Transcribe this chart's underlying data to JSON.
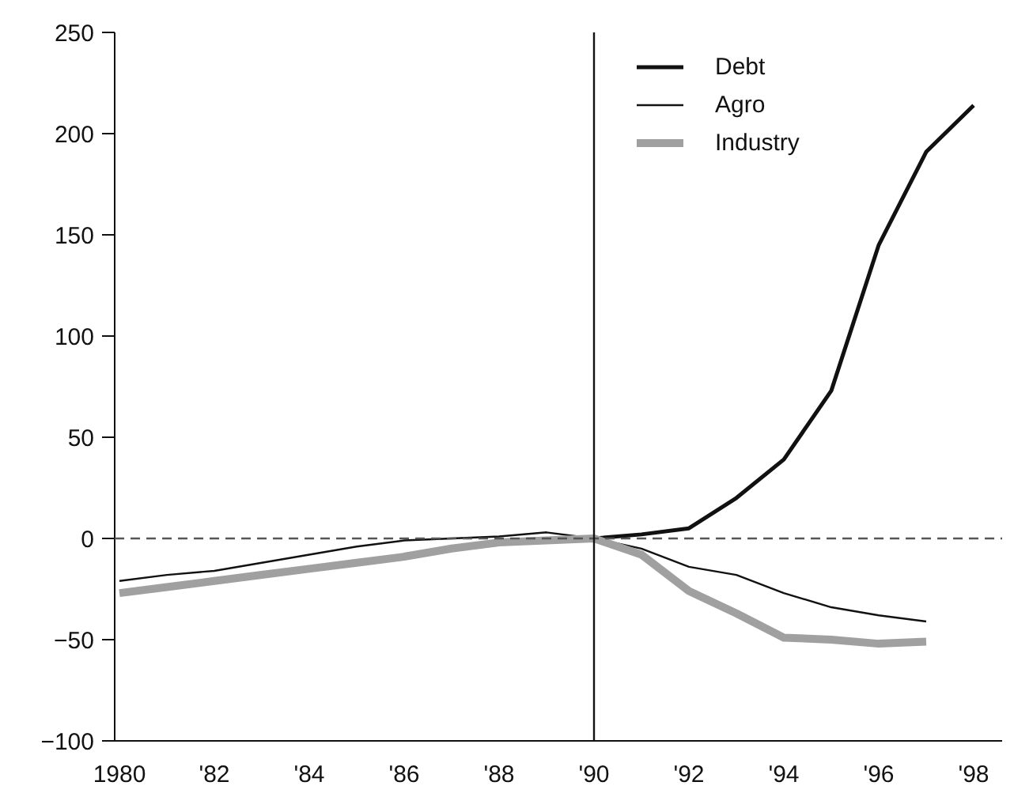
{
  "chart_data": {
    "type": "line",
    "x": [
      1980,
      1981,
      1982,
      1983,
      1984,
      1985,
      1986,
      1987,
      1988,
      1989,
      1990,
      1991,
      1992,
      1993,
      1994,
      1995,
      1996,
      1997,
      1998
    ],
    "series": [
      {
        "name": "Debt",
        "color": "#111111",
        "values": [
          null,
          null,
          null,
          null,
          null,
          null,
          null,
          null,
          null,
          null,
          0,
          2,
          5,
          20,
          39,
          73,
          145,
          191,
          214
        ]
      },
      {
        "name": "Agro",
        "color": "#111111",
        "values": [
          -21,
          -18,
          -16,
          -12,
          -8,
          -4,
          -1,
          0,
          1,
          3,
          0,
          -5,
          -14,
          -18,
          -27,
          -34,
          -38,
          -41,
          null
        ]
      },
      {
        "name": "Industry",
        "color": "#a0a0a0",
        "values": [
          -27,
          -24,
          -21,
          -18,
          -15,
          -12,
          -9,
          -5,
          -2,
          -1,
          0,
          -8,
          -26,
          -37,
          -49,
          -50,
          -52,
          -51,
          null
        ]
      }
    ],
    "xlim": [
      1979.9,
      1998.6
    ],
    "ylim": [
      -100,
      250
    ],
    "xticks": [
      {
        "value": 1980,
        "label": "1980"
      },
      {
        "value": 1982,
        "label": "'82"
      },
      {
        "value": 1984,
        "label": "'84"
      },
      {
        "value": 1986,
        "label": "'86"
      },
      {
        "value": 1988,
        "label": "'88"
      },
      {
        "value": 1990,
        "label": "'90"
      },
      {
        "value": 1992,
        "label": "'92"
      },
      {
        "value": 1994,
        "label": "'94"
      },
      {
        "value": 1996,
        "label": "'96"
      },
      {
        "value": 1998,
        "label": "'98"
      }
    ],
    "yticks": [
      {
        "value": -100,
        "label": "−100"
      },
      {
        "value": -50,
        "label": "−50"
      },
      0,
      50,
      100,
      150,
      200,
      250
    ],
    "ref_lines": [
      {
        "axis": "y",
        "value": 0,
        "color": "#555555",
        "line_style": "dashed"
      },
      {
        "axis": "x",
        "value": 1990,
        "color": "#111111",
        "line_style": "solid"
      }
    ],
    "grid": false,
    "legend": "top right",
    "marker": "none",
    "line_style": "solid"
  }
}
